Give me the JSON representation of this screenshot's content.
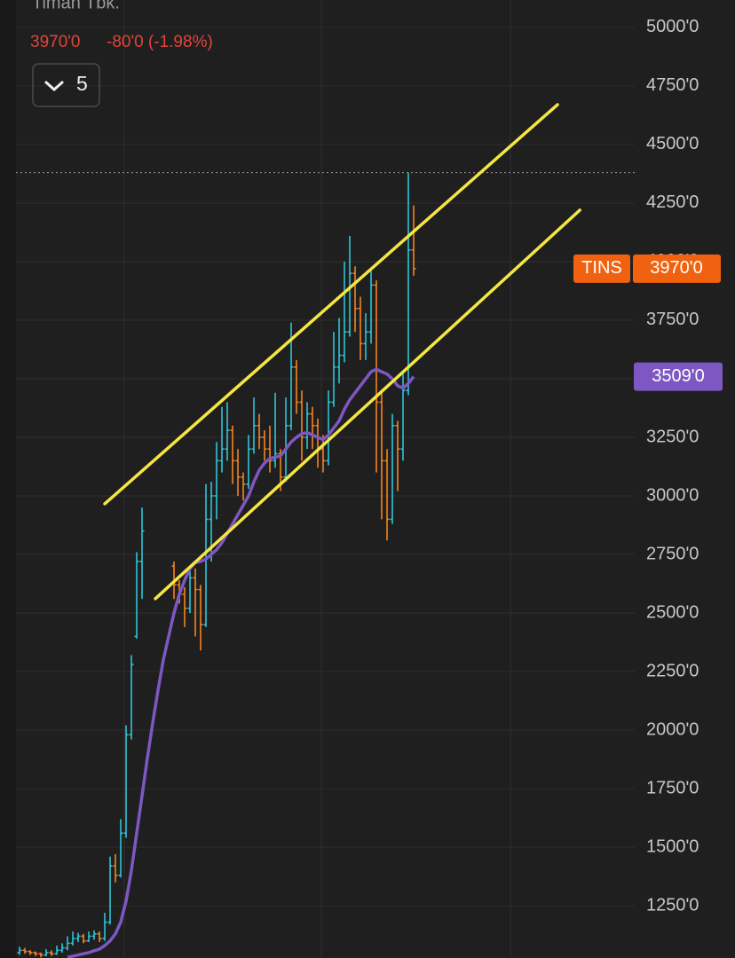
{
  "header": {
    "title": "Timah Tbk.",
    "price": "3970'0",
    "change": "-80'0 (-1.98%)",
    "interval": "5"
  },
  "chart_data": {
    "type": "ohlc",
    "categories": [
      null,
      null,
      null,
      null,
      null,
      null,
      null,
      null,
      null,
      null,
      null,
      null,
      null,
      null,
      null,
      null,
      null,
      null,
      null,
      null,
      null,
      null,
      null,
      null,
      null,
      null,
      null,
      null,
      null,
      null,
      null,
      null,
      null,
      null,
      null,
      null,
      null,
      null,
      null,
      null,
      null,
      null,
      null,
      null,
      null,
      null,
      null,
      null,
      null,
      null,
      null,
      null,
      null,
      null,
      null,
      null,
      null,
      null,
      null,
      null,
      null,
      null,
      null,
      null,
      null,
      null,
      null,
      null,
      null,
      null,
      null,
      null,
      null,
      null,
      null
    ],
    "xlim": [
      -0.67,
      115.5
    ],
    "xgrid": [
      19.67,
      56.67,
      92.17
    ],
    "ylim": [
      1027,
      5117
    ],
    "yticks": [
      {
        "value": 5000,
        "label": "5000'0"
      },
      {
        "value": 4750,
        "label": "4750'0"
      },
      {
        "value": 4500,
        "label": "4500'0"
      },
      {
        "value": 4250,
        "label": "4250'0"
      },
      {
        "value": 4000,
        "label": "4000'0"
      },
      {
        "value": 3750,
        "label": "3750'0"
      },
      {
        "value": 3500,
        "label": "3500'0"
      },
      {
        "value": 3250,
        "label": "3250'0"
      },
      {
        "value": 3000,
        "label": "3000'0"
      },
      {
        "value": 2750,
        "label": "2750'0"
      },
      {
        "value": 2500,
        "label": "2500'0"
      },
      {
        "value": 2250,
        "label": "2250'0"
      },
      {
        "value": 2000,
        "label": "2000'0"
      },
      {
        "value": 1750,
        "label": "1750'0"
      },
      {
        "value": 1500,
        "label": "1500'0"
      },
      {
        "value": 1250,
        "label": "1250'0"
      }
    ],
    "grid": true,
    "ohlc": {
      "up_color": "#2ec5d8",
      "down_color": "#f5841f",
      "open": [
        1050,
        1060,
        1055,
        1050,
        1045,
        1040,
        1050,
        1045,
        1060,
        1070,
        1090,
        1110,
        1120,
        1100,
        1120,
        1130,
        1110,
        1180,
        1420,
        1380,
        1560,
        1980,
        2400,
        2720,
        null,
        null,
        null,
        null,
        null,
        2700,
        2620,
        2580,
        2520,
        2650,
        2600,
        2450,
        2900,
        3000,
        3150,
        3200,
        3280,
        3150,
        3080,
        3050,
        3200,
        3300,
        3250,
        3200,
        3150,
        3180,
        3080,
        3300,
        3550,
        3400,
        3250,
        3350,
        3300,
        3200,
        3150,
        3400,
        3550,
        3600,
        3700,
        3950,
        3800,
        3650,
        3700,
        3900,
        3400,
        3150,
        2900,
        3300,
        3200,
        3450,
        4050
      ],
      "high": [
        1075,
        1070,
        1060,
        1055,
        1050,
        1065,
        1060,
        1080,
        1090,
        1120,
        1140,
        1135,
        1130,
        1140,
        1145,
        1140,
        1220,
        1460,
        1470,
        1620,
        2020,
        2320,
        2760,
        2950,
        null,
        null,
        null,
        null,
        null,
        2720,
        2640,
        2610,
        2700,
        2690,
        2620,
        3050,
        3060,
        3230,
        3380,
        3400,
        3300,
        3200,
        3100,
        3260,
        3420,
        3350,
        3280,
        3300,
        3440,
        3200,
        3420,
        3740,
        3580,
        3450,
        3400,
        3380,
        3330,
        3260,
        3450,
        3700,
        3760,
        4000,
        4110,
        3980,
        3850,
        3780,
        3960,
        3920,
        3450,
        3200,
        3350,
        3320,
        3520,
        4380,
        4240
      ],
      "low": [
        1040,
        1045,
        1040,
        1035,
        1030,
        1035,
        1035,
        1040,
        1050,
        1060,
        1080,
        1095,
        1090,
        1095,
        1105,
        1095,
        1100,
        1170,
        1350,
        1370,
        1540,
        1960,
        2390,
        2560,
        null,
        null,
        null,
        null,
        null,
        2560,
        2540,
        2440,
        2500,
        2400,
        2340,
        2440,
        2720,
        2900,
        3100,
        3150,
        3050,
        3000,
        2980,
        3030,
        3180,
        3200,
        3150,
        3100,
        3120,
        3020,
        3060,
        3280,
        3350,
        3150,
        3200,
        3200,
        3120,
        3100,
        3130,
        3380,
        3480,
        3570,
        3680,
        3700,
        3580,
        3580,
        3650,
        3100,
        2900,
        2810,
        2880,
        3020,
        3150,
        3430,
        3940
      ],
      "close": [
        1060,
        1055,
        1050,
        1045,
        1040,
        1050,
        1045,
        1060,
        1070,
        1090,
        1110,
        1120,
        1100,
        1120,
        1130,
        1110,
        1180,
        1420,
        1380,
        1560,
        1980,
        2280,
        2720,
        2850,
        null,
        null,
        null,
        null,
        null,
        2620,
        2580,
        2520,
        2650,
        2600,
        2450,
        2900,
        3000,
        3150,
        3200,
        3280,
        3150,
        3080,
        3050,
        3200,
        3300,
        3250,
        3200,
        3150,
        3180,
        3080,
        3300,
        3550,
        3400,
        3250,
        3350,
        3300,
        3200,
        3150,
        3400,
        3550,
        3600,
        3700,
        3950,
        3800,
        3650,
        3700,
        3900,
        3400,
        3150,
        2900,
        3300,
        3200,
        3450,
        4050,
        3970
      ]
    },
    "ma": {
      "color": "#7e57c2",
      "values": [
        null,
        null,
        null,
        null,
        null,
        null,
        null,
        null,
        null,
        1030,
        1035,
        1040,
        1045,
        1050,
        1058,
        1065,
        1080,
        1100,
        1130,
        1180,
        1270,
        1400,
        1560,
        1720,
        1880,
        2030,
        2170,
        2300,
        2400,
        2500,
        2580,
        2640,
        2690,
        2715,
        2720,
        2730,
        2750,
        2770,
        2800,
        2840,
        2880,
        2920,
        2960,
        3000,
        3060,
        3110,
        3140,
        3160,
        3165,
        3170,
        3200,
        3230,
        3250,
        3265,
        3270,
        3260,
        3250,
        3240,
        3260,
        3290,
        3320,
        3370,
        3410,
        3440,
        3470,
        3500,
        3530,
        3540,
        3530,
        3520,
        3500,
        3470,
        3460,
        3480,
        3509
      ]
    },
    "trendlines": [
      {
        "color": "#f5e642",
        "x": [
          16,
          101
        ],
        "y": [
          2966,
          4670
        ]
      },
      {
        "color": "#f5e642",
        "x": [
          25.5,
          105.2
        ],
        "y": [
          2561,
          4220
        ]
      }
    ],
    "high_line": 4380,
    "last_price": {
      "label": "TINS",
      "value": 3970,
      "value_label": "3970'0",
      "color": "#f0620f"
    },
    "ma_label": {
      "value": 3509,
      "value_label": "3509'0",
      "color": "#7e57c2"
    }
  }
}
